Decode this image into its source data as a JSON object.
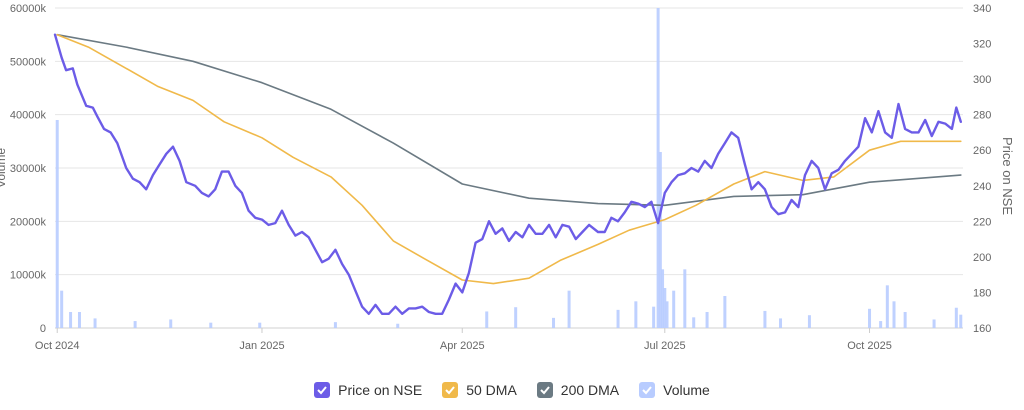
{
  "chart_data": {
    "type": "line",
    "title": "",
    "xlabel": "",
    "y_left_label": "Volume",
    "y_right_label": "Price on NSE",
    "x_range": [
      "2024-09-30",
      "2025-11-12"
    ],
    "x_ticks": [
      {
        "date": "2024-10-01",
        "label": "Oct 2024"
      },
      {
        "date": "2025-01-01",
        "label": "Jan 2025"
      },
      {
        "date": "2025-04-01",
        "label": "Apr 2025"
      },
      {
        "date": "2025-07-01",
        "label": "Jul 2025"
      },
      {
        "date": "2025-10-01",
        "label": "Oct 2025"
      }
    ],
    "y_left": {
      "min": 0,
      "max": 60000,
      "ticks": [
        0,
        10000,
        20000,
        30000,
        40000,
        50000,
        60000
      ],
      "tick_labels": [
        "0",
        "10000k",
        "20000k",
        "30000k",
        "40000k",
        "50000k",
        "60000k"
      ]
    },
    "y_right": {
      "min": 160,
      "max": 340,
      "ticks": [
        160,
        180,
        200,
        220,
        240,
        260,
        280,
        300,
        320,
        340
      ]
    },
    "grid": true,
    "legend_position": "bottom-center",
    "series": [
      {
        "name": "Price on NSE",
        "axis": "right",
        "color": "#6c5ce7",
        "points": [
          [
            "2024-09-30",
            325
          ],
          [
            "2024-10-03",
            312
          ],
          [
            "2024-10-05",
            305
          ],
          [
            "2024-10-08",
            306
          ],
          [
            "2024-10-10",
            297
          ],
          [
            "2024-10-14",
            285
          ],
          [
            "2024-10-17",
            284
          ],
          [
            "2024-10-19",
            279
          ],
          [
            "2024-10-22",
            272
          ],
          [
            "2024-10-25",
            270
          ],
          [
            "2024-10-28",
            264
          ],
          [
            "2024-11-01",
            250
          ],
          [
            "2024-11-04",
            244
          ],
          [
            "2024-11-07",
            242
          ],
          [
            "2024-11-10",
            238
          ],
          [
            "2024-11-13",
            246
          ],
          [
            "2024-11-16",
            252
          ],
          [
            "2024-11-19",
            258
          ],
          [
            "2024-11-22",
            262
          ],
          [
            "2024-11-25",
            254
          ],
          [
            "2024-11-28",
            242
          ],
          [
            "2024-12-02",
            240
          ],
          [
            "2024-12-05",
            236
          ],
          [
            "2024-12-08",
            234
          ],
          [
            "2024-12-11",
            238
          ],
          [
            "2024-12-14",
            248
          ],
          [
            "2024-12-17",
            248
          ],
          [
            "2024-12-20",
            240
          ],
          [
            "2024-12-23",
            236
          ],
          [
            "2024-12-26",
            226
          ],
          [
            "2024-12-29",
            222
          ],
          [
            "2025-01-01",
            221
          ],
          [
            "2025-01-04",
            218
          ],
          [
            "2025-01-07",
            219
          ],
          [
            "2025-01-10",
            226
          ],
          [
            "2025-01-13",
            218
          ],
          [
            "2025-01-16",
            212
          ],
          [
            "2025-01-19",
            214
          ],
          [
            "2025-01-22",
            211
          ],
          [
            "2025-01-25",
            204
          ],
          [
            "2025-01-28",
            197
          ],
          [
            "2025-01-31",
            199
          ],
          [
            "2025-02-03",
            204
          ],
          [
            "2025-02-06",
            196
          ],
          [
            "2025-02-09",
            190
          ],
          [
            "2025-02-12",
            181
          ],
          [
            "2025-02-15",
            172
          ],
          [
            "2025-02-18",
            168
          ],
          [
            "2025-02-21",
            173
          ],
          [
            "2025-02-24",
            168
          ],
          [
            "2025-02-27",
            168
          ],
          [
            "2025-03-02",
            172
          ],
          [
            "2025-03-05",
            168
          ],
          [
            "2025-03-08",
            171
          ],
          [
            "2025-03-11",
            171
          ],
          [
            "2025-03-14",
            172
          ],
          [
            "2025-03-17",
            169
          ],
          [
            "2025-03-20",
            168
          ],
          [
            "2025-03-23",
            168
          ],
          [
            "2025-03-26",
            176
          ],
          [
            "2025-03-29",
            185
          ],
          [
            "2025-04-01",
            180
          ],
          [
            "2025-04-04",
            191
          ],
          [
            "2025-04-07",
            208
          ],
          [
            "2025-04-10",
            210
          ],
          [
            "2025-04-13",
            220
          ],
          [
            "2025-04-16",
            213
          ],
          [
            "2025-04-19",
            216
          ],
          [
            "2025-04-22",
            209
          ],
          [
            "2025-04-25",
            214
          ],
          [
            "2025-04-28",
            211
          ],
          [
            "2025-05-01",
            218
          ],
          [
            "2025-05-04",
            213
          ],
          [
            "2025-05-07",
            213
          ],
          [
            "2025-05-10",
            218
          ],
          [
            "2025-05-13",
            211
          ],
          [
            "2025-05-16",
            218
          ],
          [
            "2025-05-19",
            217
          ],
          [
            "2025-05-22",
            210
          ],
          [
            "2025-05-25",
            214
          ],
          [
            "2025-05-28",
            218
          ],
          [
            "2025-06-01",
            214
          ],
          [
            "2025-06-04",
            214
          ],
          [
            "2025-06-07",
            222
          ],
          [
            "2025-06-10",
            220
          ],
          [
            "2025-06-13",
            225
          ],
          [
            "2025-06-16",
            231
          ],
          [
            "2025-06-19",
            230
          ],
          [
            "2025-06-22",
            228
          ],
          [
            "2025-06-25",
            231
          ],
          [
            "2025-06-28",
            219
          ],
          [
            "2025-07-01",
            236
          ],
          [
            "2025-07-04",
            242
          ],
          [
            "2025-07-07",
            246
          ],
          [
            "2025-07-10",
            247
          ],
          [
            "2025-07-13",
            250
          ],
          [
            "2025-07-16",
            248
          ],
          [
            "2025-07-19",
            254
          ],
          [
            "2025-07-22",
            250
          ],
          [
            "2025-07-25",
            258
          ],
          [
            "2025-07-28",
            264
          ],
          [
            "2025-07-31",
            270
          ],
          [
            "2025-08-03",
            267
          ],
          [
            "2025-08-06",
            252
          ],
          [
            "2025-08-09",
            238
          ],
          [
            "2025-08-12",
            242
          ],
          [
            "2025-08-15",
            238
          ],
          [
            "2025-08-18",
            228
          ],
          [
            "2025-08-21",
            224
          ],
          [
            "2025-08-24",
            225
          ],
          [
            "2025-08-27",
            232
          ],
          [
            "2025-08-30",
            228
          ],
          [
            "2025-09-02",
            246
          ],
          [
            "2025-09-05",
            254
          ],
          [
            "2025-09-08",
            250
          ],
          [
            "2025-09-11",
            238
          ],
          [
            "2025-09-14",
            247
          ],
          [
            "2025-09-17",
            249
          ],
          [
            "2025-09-20",
            254
          ],
          [
            "2025-09-23",
            258
          ],
          [
            "2025-09-26",
            262
          ],
          [
            "2025-09-29",
            278
          ],
          [
            "2025-10-02",
            270
          ],
          [
            "2025-10-05",
            282
          ],
          [
            "2025-10-08",
            270
          ],
          [
            "2025-10-11",
            267
          ],
          [
            "2025-10-14",
            286
          ],
          [
            "2025-10-17",
            272
          ],
          [
            "2025-10-20",
            270
          ],
          [
            "2025-10-23",
            270
          ],
          [
            "2025-10-26",
            277
          ],
          [
            "2025-10-29",
            268
          ],
          [
            "2025-11-01",
            276
          ],
          [
            "2025-11-04",
            275
          ],
          [
            "2025-11-07",
            272
          ],
          [
            "2025-11-09",
            284
          ],
          [
            "2025-11-11",
            276
          ]
        ]
      },
      {
        "name": "50 DMA",
        "axis": "right",
        "color": "#f0b94a",
        "points": [
          [
            "2024-10-01",
            325
          ],
          [
            "2024-10-15",
            318
          ],
          [
            "2024-11-01",
            306
          ],
          [
            "2024-11-15",
            296
          ],
          [
            "2024-12-01",
            288
          ],
          [
            "2024-12-15",
            276
          ],
          [
            "2025-01-01",
            267
          ],
          [
            "2025-01-15",
            256
          ],
          [
            "2025-02-01",
            245
          ],
          [
            "2025-02-15",
            229
          ],
          [
            "2025-03-01",
            209
          ],
          [
            "2025-03-15",
            199
          ],
          [
            "2025-04-01",
            187
          ],
          [
            "2025-04-15",
            185
          ],
          [
            "2025-05-01",
            188
          ],
          [
            "2025-05-15",
            198
          ],
          [
            "2025-06-01",
            207
          ],
          [
            "2025-06-15",
            215
          ],
          [
            "2025-07-01",
            221
          ],
          [
            "2025-07-15",
            229
          ],
          [
            "2025-08-01",
            241
          ],
          [
            "2025-08-15",
            248
          ],
          [
            "2025-09-01",
            243
          ],
          [
            "2025-09-15",
            245
          ],
          [
            "2025-10-01",
            260
          ],
          [
            "2025-10-15",
            265
          ],
          [
            "2025-11-11",
            265
          ]
        ]
      },
      {
        "name": "200 DMA",
        "axis": "right",
        "color": "#6b7a83",
        "points": [
          [
            "2024-10-01",
            325
          ],
          [
            "2024-11-01",
            318
          ],
          [
            "2024-12-01",
            310
          ],
          [
            "2025-01-01",
            298
          ],
          [
            "2025-02-01",
            283
          ],
          [
            "2025-03-01",
            264
          ],
          [
            "2025-04-01",
            241
          ],
          [
            "2025-05-01",
            233
          ],
          [
            "2025-06-01",
            230
          ],
          [
            "2025-07-01",
            229
          ],
          [
            "2025-08-01",
            234
          ],
          [
            "2025-09-01",
            235
          ],
          [
            "2025-10-01",
            242
          ],
          [
            "2025-11-11",
            246
          ]
        ]
      },
      {
        "name": "Volume",
        "axis": "left",
        "color": "#b8ccff",
        "bars": [
          [
            "2024-10-01",
            39000
          ],
          [
            "2024-10-03",
            7000
          ],
          [
            "2024-10-07",
            3000
          ],
          [
            "2024-10-11",
            3000
          ],
          [
            "2024-10-18",
            1800
          ],
          [
            "2024-11-05",
            1300
          ],
          [
            "2024-11-21",
            1600
          ],
          [
            "2024-12-09",
            1000
          ],
          [
            "2024-12-31",
            1000
          ],
          [
            "2025-02-03",
            1100
          ],
          [
            "2025-03-03",
            800
          ],
          [
            "2025-04-12",
            3100
          ],
          [
            "2025-04-25",
            3900
          ],
          [
            "2025-05-12",
            1900
          ],
          [
            "2025-05-19",
            7000
          ],
          [
            "2025-06-10",
            3400
          ],
          [
            "2025-06-18",
            5000
          ],
          [
            "2025-06-26",
            4000
          ],
          [
            "2025-06-28",
            60000
          ],
          [
            "2025-06-29",
            33000
          ],
          [
            "2025-06-30",
            11000
          ],
          [
            "2025-07-01",
            7500
          ],
          [
            "2025-07-02",
            5000
          ],
          [
            "2025-07-05",
            7000
          ],
          [
            "2025-07-10",
            11000
          ],
          [
            "2025-07-14",
            2000
          ],
          [
            "2025-07-20",
            3000
          ],
          [
            "2025-07-28",
            6000
          ],
          [
            "2025-08-15",
            3200
          ],
          [
            "2025-08-22",
            1800
          ],
          [
            "2025-09-04",
            2400
          ],
          [
            "2025-10-01",
            3600
          ],
          [
            "2025-10-06",
            1300
          ],
          [
            "2025-10-09",
            8000
          ],
          [
            "2025-10-12",
            5000
          ],
          [
            "2025-10-17",
            3000
          ],
          [
            "2025-10-30",
            1600
          ],
          [
            "2025-11-09",
            3800
          ],
          [
            "2025-11-11",
            2500
          ]
        ]
      }
    ]
  }
}
